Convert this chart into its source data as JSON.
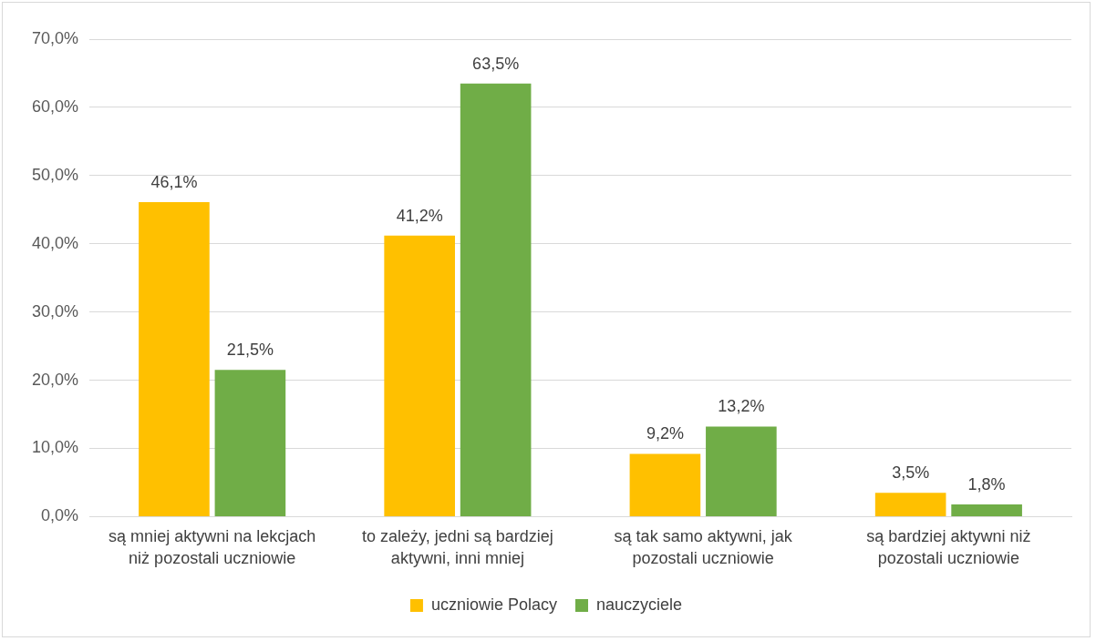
{
  "chart_data": {
    "type": "bar",
    "categories": [
      "są mniej aktywni na lekcjach niż pozostali uczniowie",
      "to zależy, jedni są bardziej aktywni, inni mniej",
      "są tak samo aktywni, jak pozostali uczniowie",
      "są bardziej aktywni niż pozostali uczniowie"
    ],
    "series": [
      {
        "name": "uczniowie Polacy",
        "color": "#ffc000",
        "values": [
          46.1,
          41.2,
          9.2,
          3.5
        ],
        "value_labels": [
          "46,1%",
          "41,2%",
          "9,2%",
          "3,5%"
        ]
      },
      {
        "name": "nauczyciele",
        "color": "#70ad47",
        "values": [
          21.5,
          63.5,
          13.2,
          1.8
        ],
        "value_labels": [
          "21,5%",
          "63,5%",
          "13,2%",
          "1,8%"
        ]
      }
    ],
    "ylim": [
      0,
      70
    ],
    "yticks": [
      {
        "value": 0,
        "label": "0,0%"
      },
      {
        "value": 10,
        "label": "10,0%"
      },
      {
        "value": 20,
        "label": "20,0%"
      },
      {
        "value": 30,
        "label": "30,0%"
      },
      {
        "value": 40,
        "label": "40,0%"
      },
      {
        "value": 50,
        "label": "50,0%"
      },
      {
        "value": 60,
        "label": "60,0%"
      },
      {
        "value": 70,
        "label": "70,0%"
      }
    ],
    "grid": "y",
    "legend": "bottom"
  }
}
